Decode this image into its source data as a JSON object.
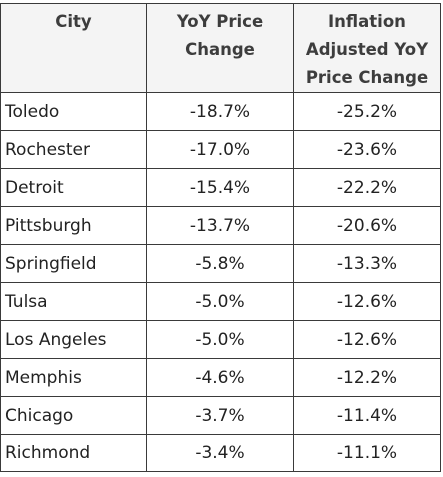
{
  "table": {
    "headers": [
      "City",
      "YoY Price Change",
      "Inflation Adjusted YoY Price Change"
    ],
    "header_lines": [
      [
        "City"
      ],
      [
        "YoY Price",
        "Change"
      ],
      [
        "Inflation",
        "Adjusted YoY",
        "Price Change"
      ]
    ],
    "rows": [
      {
        "city": "Toledo",
        "yoy": "-18.7%",
        "adj": "-25.2%"
      },
      {
        "city": "Rochester",
        "yoy": "-17.0%",
        "adj": "-23.6%"
      },
      {
        "city": "Detroit",
        "yoy": "-15.4%",
        "adj": "-22.2%"
      },
      {
        "city": "Pittsburgh",
        "yoy": "-13.7%",
        "adj": "-20.6%"
      },
      {
        "city": "Springfield",
        "yoy": "-5.8%",
        "adj": "-13.3%"
      },
      {
        "city": "Tulsa",
        "yoy": "-5.0%",
        "adj": "-12.6%"
      },
      {
        "city": "Los Angeles",
        "yoy": "-5.0%",
        "adj": "-12.6%"
      },
      {
        "city": "Memphis",
        "yoy": "-4.6%",
        "adj": "-12.2%"
      },
      {
        "city": "Chicago",
        "yoy": "-3.7%",
        "adj": "-11.4%"
      },
      {
        "city": "Richmond",
        "yoy": "-3.4%",
        "adj": "-11.1%"
      }
    ]
  },
  "colors": {
    "header_bg": "#f4f4f4",
    "border": "#3a3a3a",
    "text": "#222222"
  }
}
